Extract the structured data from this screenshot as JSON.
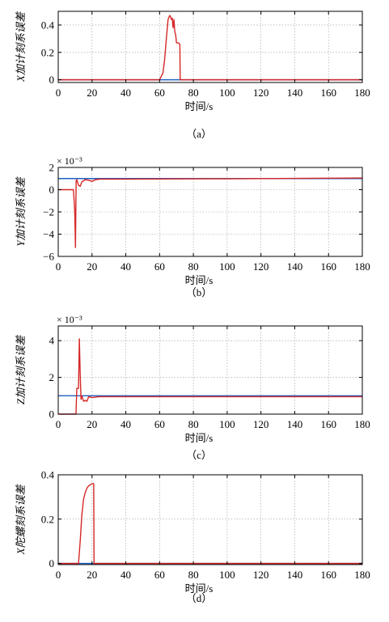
{
  "colors": {
    "red": "#d62728",
    "blue": "#1f5fbf",
    "grid": "#9a9a9a",
    "axis": "#000000"
  },
  "chart_data": [
    {
      "type": "line",
      "panel_label": "（a）",
      "xlabel": "时间/s",
      "ylabel": "X加计刻系误差",
      "exponent": "",
      "xlim": [
        0,
        180
      ],
      "ylim": [
        -0.02,
        0.5
      ],
      "x_ticks": [
        0,
        20,
        40,
        60,
        80,
        100,
        120,
        140,
        160,
        180
      ],
      "y_ticks": [
        0,
        0.2,
        0.4
      ],
      "y_tick_labels": [
        "0",
        "0.2",
        "0.4"
      ],
      "grid": true,
      "series": [
        {
          "color_key": "blue",
          "x": [
            0,
            180
          ],
          "y": [
            0,
            0
          ]
        },
        {
          "color_key": "red",
          "x": [
            0,
            60,
            62,
            63,
            64,
            65,
            66,
            66.5,
            67,
            67.5,
            68,
            68.5,
            69,
            69.5,
            70,
            71,
            72,
            72.2,
            180
          ],
          "y": [
            0,
            0,
            0.05,
            0.15,
            0.3,
            0.44,
            0.47,
            0.46,
            0.44,
            0.45,
            0.38,
            0.44,
            0.35,
            0.33,
            0.27,
            0.27,
            0.26,
            0,
            0
          ]
        }
      ]
    },
    {
      "type": "line",
      "panel_label": "（b）",
      "xlabel": "时间/s",
      "ylabel": "Y加计刻系误差",
      "exponent": "× 10⁻³",
      "xlim": [
        0,
        180
      ],
      "ylim": [
        -6,
        2
      ],
      "x_ticks": [
        0,
        20,
        40,
        60,
        80,
        100,
        120,
        140,
        160,
        180
      ],
      "y_ticks": [
        -6,
        -4,
        -2,
        0,
        2
      ],
      "y_tick_labels": [
        "−6",
        "−4",
        "−2",
        "0",
        "2"
      ],
      "grid": true,
      "series": [
        {
          "color_key": "blue",
          "x": [
            0,
            180
          ],
          "y": [
            1,
            1
          ]
        },
        {
          "color_key": "red",
          "x": [
            0,
            9,
            9.8,
            10.2,
            10.6,
            11,
            12,
            13,
            14,
            16,
            18,
            20,
            22,
            25,
            40,
            100,
            180
          ],
          "y": [
            0,
            0,
            -2,
            -5.2,
            0.8,
            0.9,
            0.4,
            0.3,
            0.7,
            0.9,
            0.85,
            0.75,
            0.9,
            0.95,
            0.95,
            0.98,
            1.05
          ]
        }
      ]
    },
    {
      "type": "line",
      "panel_label": "（c）",
      "xlabel": "时间/s",
      "ylabel": "Z加计刻系误差",
      "exponent": "× 10⁻³",
      "xlim": [
        0,
        180
      ],
      "ylim": [
        0,
        4.8
      ],
      "x_ticks": [
        0,
        20,
        40,
        60,
        80,
        100,
        120,
        140,
        160,
        180
      ],
      "y_ticks": [
        0,
        2,
        4
      ],
      "y_tick_labels": [
        "0",
        "2",
        "4"
      ],
      "grid": true,
      "series": [
        {
          "color_key": "blue",
          "x": [
            0,
            180
          ],
          "y": [
            1,
            1
          ]
        },
        {
          "color_key": "red",
          "x": [
            0,
            10.5,
            11,
            12,
            12.5,
            13,
            13.5,
            14,
            15,
            16,
            17,
            18,
            20,
            24,
            180
          ],
          "y": [
            0,
            0,
            1.4,
            1.4,
            4.1,
            2.2,
            0.8,
            1.0,
            0.7,
            0.75,
            0.7,
            0.95,
            0.9,
            0.95,
            0.95
          ]
        }
      ]
    },
    {
      "type": "line",
      "panel_label": "（d）",
      "xlabel": "时间/s",
      "ylabel": "X陀螺刻系误差",
      "exponent": "",
      "xlim": [
        0,
        180
      ],
      "ylim": [
        -0.005,
        0.4
      ],
      "x_ticks": [
        0,
        20,
        40,
        60,
        80,
        100,
        120,
        140,
        160,
        180
      ],
      "y_ticks": [
        0,
        0.2,
        0.4
      ],
      "y_tick_labels": [
        "0",
        "0.2",
        "0.4"
      ],
      "grid": true,
      "series": [
        {
          "color_key": "blue",
          "x": [
            0,
            180
          ],
          "y": [
            0,
            0
          ]
        },
        {
          "color_key": "red",
          "x": [
            0,
            12,
            13,
            14,
            15,
            16,
            17,
            18,
            19,
            20,
            21,
            21.2,
            180
          ],
          "y": [
            0,
            0,
            0.1,
            0.22,
            0.29,
            0.32,
            0.34,
            0.35,
            0.355,
            0.36,
            0.36,
            0,
            0
          ]
        }
      ]
    }
  ]
}
